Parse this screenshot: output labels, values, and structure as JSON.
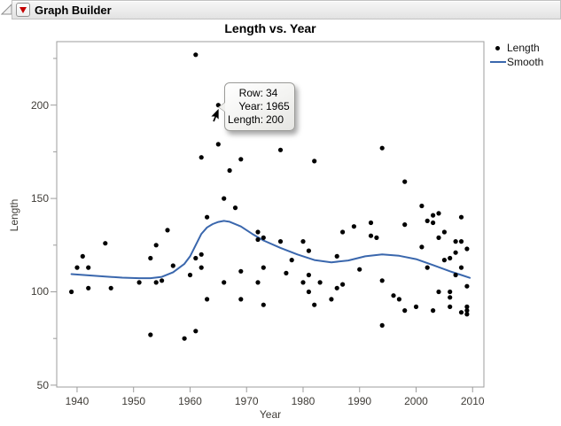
{
  "window": {
    "title": "Graph Builder"
  },
  "header": {
    "disclosure_icon": "open-outline-triangle",
    "menu_icon": "red-triangle"
  },
  "chart": {
    "title": "Length vs. Year",
    "xlabel": "Year",
    "ylabel": "Length"
  },
  "legend": {
    "items": [
      {
        "label": "Length",
        "marker": "point"
      },
      {
        "label": "Smooth",
        "marker": "line"
      }
    ]
  },
  "tooltip": {
    "rows": [
      {
        "label": "Row:",
        "value": "34"
      },
      {
        "label": "Year:",
        "value": "1965"
      },
      {
        "label": "Length:",
        "value": "200"
      }
    ]
  },
  "colors": {
    "smooth_line": "#3a67ad",
    "data_point": "#000000",
    "frame": "#9c9c9c",
    "tick_label": "#3f3c37",
    "red_triangle": "#c40000"
  },
  "chart_data": {
    "type": "scatter",
    "title": "Length vs. Year",
    "xlabel": "Year",
    "ylabel": "Length",
    "x_ticks": [
      1940,
      1950,
      1960,
      1970,
      1980,
      1990,
      2000,
      2010
    ],
    "y_ticks": [
      50,
      100,
      150,
      200
    ],
    "y_minor_ticks": [
      75,
      125,
      175,
      225
    ],
    "xlim": [
      1936.4,
      2012
    ],
    "ylim": [
      49,
      234
    ],
    "grid": false,
    "legend_position": "top-right-outside",
    "highlighted_point": {
      "row": 34,
      "year": 1965,
      "length": 200
    },
    "series": [
      {
        "name": "Length",
        "type": "scatter",
        "points": [
          [
            1939,
            100
          ],
          [
            1940,
            113
          ],
          [
            1941,
            119
          ],
          [
            1942,
            113
          ],
          [
            1942,
            102
          ],
          [
            1945,
            126
          ],
          [
            1946,
            102
          ],
          [
            1951,
            105
          ],
          [
            1953,
            118
          ],
          [
            1953,
            77
          ],
          [
            1954,
            125
          ],
          [
            1954,
            105
          ],
          [
            1955,
            106
          ],
          [
            1956,
            133
          ],
          [
            1957,
            114
          ],
          [
            1959,
            75
          ],
          [
            1960,
            109
          ],
          [
            1961,
            118
          ],
          [
            1961,
            79
          ],
          [
            1961,
            227
          ],
          [
            1962,
            172
          ],
          [
            1962,
            120
          ],
          [
            1962,
            113
          ],
          [
            1963,
            140
          ],
          [
            1963,
            96
          ],
          [
            1965,
            200
          ],
          [
            1965,
            179
          ],
          [
            1966,
            150
          ],
          [
            1966,
            105
          ],
          [
            1967,
            165
          ],
          [
            1968,
            145
          ],
          [
            1969,
            171
          ],
          [
            1969,
            111
          ],
          [
            1969,
            96
          ],
          [
            1972,
            128
          ],
          [
            1972,
            132
          ],
          [
            1973,
            129
          ],
          [
            1972,
            105
          ],
          [
            1973,
            113
          ],
          [
            1973,
            93
          ],
          [
            1976,
            176
          ],
          [
            1976,
            127
          ],
          [
            1977,
            110
          ],
          [
            1978,
            117
          ],
          [
            1980,
            127
          ],
          [
            1980,
            105
          ],
          [
            1981,
            122
          ],
          [
            1981,
            109
          ],
          [
            1981,
            100
          ],
          [
            1982,
            170
          ],
          [
            1982,
            93
          ],
          [
            1983,
            105
          ],
          [
            1985,
            96
          ],
          [
            1986,
            119
          ],
          [
            1986,
            102
          ],
          [
            1987,
            132
          ],
          [
            1987,
            104
          ],
          [
            1989,
            135
          ],
          [
            1990,
            112
          ],
          [
            1992,
            137
          ],
          [
            1992,
            130
          ],
          [
            1993,
            129
          ],
          [
            1994,
            177
          ],
          [
            1994,
            106
          ],
          [
            1994,
            82
          ],
          [
            1996,
            98
          ],
          [
            1997,
            96
          ],
          [
            1998,
            159
          ],
          [
            1998,
            136
          ],
          [
            1998,
            90
          ],
          [
            2000,
            92
          ],
          [
            2001,
            146
          ],
          [
            2001,
            124
          ],
          [
            2002,
            138
          ],
          [
            2002,
            113
          ],
          [
            2003,
            141
          ],
          [
            2003,
            137
          ],
          [
            2003,
            90
          ],
          [
            2004,
            142
          ],
          [
            2004,
            129
          ],
          [
            2004,
            100
          ],
          [
            2005,
            132
          ],
          [
            2005,
            117
          ],
          [
            2006,
            118
          ],
          [
            2006,
            100
          ],
          [
            2006,
            97
          ],
          [
            2006,
            92
          ],
          [
            2007,
            127
          ],
          [
            2007,
            121
          ],
          [
            2007,
            109
          ],
          [
            2008,
            140
          ],
          [
            2008,
            127
          ],
          [
            2008,
            113
          ],
          [
            2008,
            89
          ],
          [
            2009,
            123
          ],
          [
            2009,
            103
          ],
          [
            2009,
            92
          ],
          [
            2009,
            90
          ],
          [
            2009,
            88
          ]
        ]
      },
      {
        "name": "Smooth",
        "type": "line",
        "points": [
          [
            1939,
            109.5
          ],
          [
            1942,
            108.8
          ],
          [
            1945,
            108.2
          ],
          [
            1948,
            107.6
          ],
          [
            1951,
            107.3
          ],
          [
            1953,
            107.3
          ],
          [
            1955,
            108
          ],
          [
            1957,
            110.5
          ],
          [
            1959,
            115
          ],
          [
            1960,
            119
          ],
          [
            1961,
            125
          ],
          [
            1962,
            131
          ],
          [
            1963,
            134.5
          ],
          [
            1964,
            136.3
          ],
          [
            1965,
            137.4
          ],
          [
            1966,
            138
          ],
          [
            1967,
            137.5
          ],
          [
            1969,
            135
          ],
          [
            1971,
            131
          ],
          [
            1973,
            127.5
          ],
          [
            1976,
            123.5
          ],
          [
            1979,
            120
          ],
          [
            1982,
            117
          ],
          [
            1985,
            115.8
          ],
          [
            1988,
            116.8
          ],
          [
            1991,
            119
          ],
          [
            1994,
            120
          ],
          [
            1997,
            119.3
          ],
          [
            2000,
            117.5
          ],
          [
            2003,
            114.3
          ],
          [
            2006,
            111
          ],
          [
            2008,
            109
          ],
          [
            2009.5,
            107.5
          ]
        ]
      }
    ]
  }
}
